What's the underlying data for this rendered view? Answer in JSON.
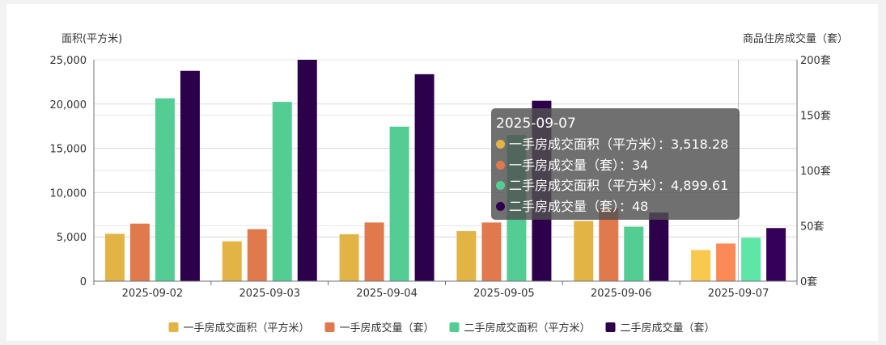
{
  "chart_data": {
    "type": "bar",
    "categories": [
      "2025-09-02",
      "2025-09-03",
      "2025-09-04",
      "2025-09-05",
      "2025-09-06",
      "2025-09-07"
    ],
    "y_left": {
      "name": "面积(平方米)",
      "ylim": [
        0,
        25000
      ],
      "ticks": [
        0,
        5000,
        10000,
        15000,
        20000,
        25000
      ],
      "tick_labels": [
        "0",
        "5,000",
        "10,000",
        "15,000",
        "20,000",
        "25,000"
      ]
    },
    "y_right": {
      "name": "商品住房成交量（套）",
      "ylim": [
        0,
        200
      ],
      "ticks": [
        0,
        50,
        100,
        150,
        200
      ],
      "tick_labels": [
        "0套",
        "50套",
        "100套",
        "150套",
        "200套"
      ]
    },
    "series": [
      {
        "name": "一手房成交面积（平方米）",
        "axis": "left",
        "color": "#e2b445",
        "highlight_color": "#f9c84e",
        "values": [
          5350,
          4500,
          5300,
          5650,
          6800,
          3518.28
        ]
      },
      {
        "name": "一手房成交量（套）",
        "axis": "right",
        "color": "#e07a4d",
        "highlight_color": "#fb8a56",
        "values": [
          52,
          47,
          53,
          53,
          66,
          34
        ]
      },
      {
        "name": "二手房成交面积（平方米）",
        "axis": "left",
        "color": "#54cd94",
        "highlight_color": "#5ee6a6",
        "values": [
          20650,
          20250,
          17450,
          16500,
          6150,
          4899.61
        ]
      },
      {
        "name": "二手房成交量（套）",
        "axis": "right",
        "color": "#2d004b",
        "highlight_color": "#34005a",
        "values": [
          190,
          200,
          187,
          163,
          62,
          48
        ]
      }
    ],
    "highlighted_index": 5,
    "grid": true,
    "legend": "bottom-center"
  },
  "tooltip": {
    "title": "2025-09-07",
    "rows": [
      {
        "label": "一手房成交面积（平方米）：3,518.28",
        "color": "#e2b445"
      },
      {
        "label": "一手房成交量（套）：34",
        "color": "#e07a4d"
      },
      {
        "label": "二手房成交面积（平方米）：4,899.61",
        "color": "#54cd94"
      },
      {
        "label": "二手房成交量（套）：48",
        "color": "#2d004b"
      }
    ]
  }
}
